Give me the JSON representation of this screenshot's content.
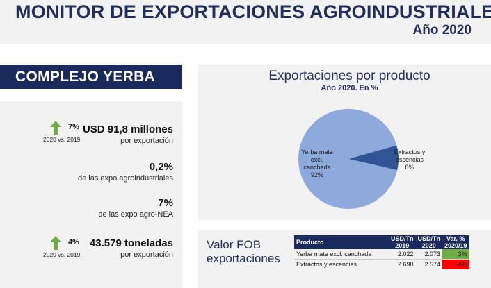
{
  "header": {
    "title": "MONITOR DE EXPORTACIONES AGROINDUSTRIALES",
    "subtitle": "Año 2020"
  },
  "complejo": {
    "label": "COMPLEJO YERBA"
  },
  "stats": {
    "usd": {
      "value": "USD 91,8 millones",
      "sub": "por exportación",
      "change": {
        "pct": "7%",
        "period": "2020 vs. 2019",
        "direction": "up",
        "icon": "arrow-up-icon",
        "color": "#70ad47"
      }
    },
    "share_agro": {
      "value": "0,2%",
      "sub": "de las expo agroindustriales"
    },
    "share_nea": {
      "value": "7%",
      "sub": "de las expo agro-NEA"
    },
    "tons": {
      "value": "43.579 toneladas",
      "sub": "por exportación",
      "change": {
        "pct": "4%",
        "period": "2020 vs. 2019",
        "direction": "up",
        "icon": "arrow-up-icon",
        "color": "#70ad47"
      }
    }
  },
  "chart_data": {
    "type": "pie",
    "title": "Exportaciones por producto",
    "subtitle": "Año 2020. En %",
    "slices": [
      {
        "label_lines": [
          "Yerba mate",
          "excl.",
          "canchada",
          "92%"
        ],
        "value": 92,
        "color": "#8ea9db"
      },
      {
        "label_lines": [
          "Extractos y",
          "escencias",
          "8%"
        ],
        "value": 8,
        "color": "#305496"
      }
    ]
  },
  "fob": {
    "title_lines": [
      "Valor FOB",
      "exportaciones"
    ],
    "headers": {
      "product": "Producto",
      "col2019": [
        "USD/Tn",
        "2019"
      ],
      "col2020": [
        "USD/Tn",
        "2020"
      ],
      "var": [
        "Var. %",
        "2020/19"
      ]
    },
    "rows": [
      {
        "product": "Yerba mate excl. canchada",
        "v2019": "2.022",
        "v2020": "2.073",
        "var": "3%",
        "var_color": "#70ad47"
      },
      {
        "product": "Extractos y escencias",
        "v2019": "2.690",
        "v2020": "2.574",
        "var": "-4%",
        "var_color": "#ff0000"
      }
    ]
  }
}
